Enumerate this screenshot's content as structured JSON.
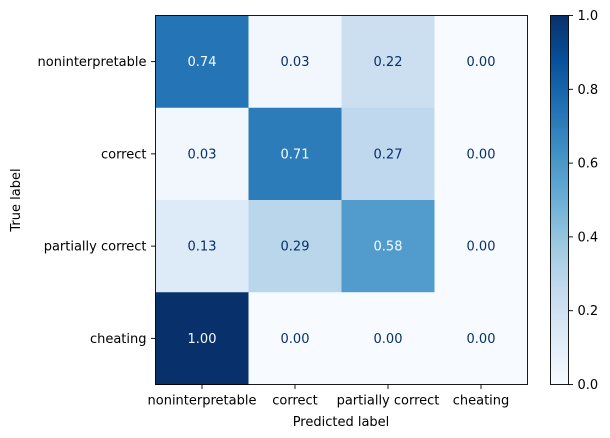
{
  "chart_data": {
    "type": "heatmap",
    "title": "",
    "xlabel": "Predicted label",
    "ylabel": "True label",
    "x_categories": [
      "noninterpretable",
      "correct",
      "partially correct",
      "cheating"
    ],
    "y_categories": [
      "noninterpretable",
      "correct",
      "partially correct",
      "cheating"
    ],
    "values": [
      [
        0.74,
        0.03,
        0.22,
        0.0
      ],
      [
        0.03,
        0.71,
        0.27,
        0.0
      ],
      [
        0.13,
        0.29,
        0.58,
        0.0
      ],
      [
        1.0,
        0.0,
        0.0,
        0.0
      ]
    ],
    "value_format": "2 decimals",
    "colormap": "Blues",
    "colorbar": {
      "range": [
        0.0,
        1.0
      ],
      "ticks": [
        "0.0",
        "0.2",
        "0.4",
        "0.6",
        "0.8",
        "1.0"
      ]
    },
    "grid": false
  }
}
